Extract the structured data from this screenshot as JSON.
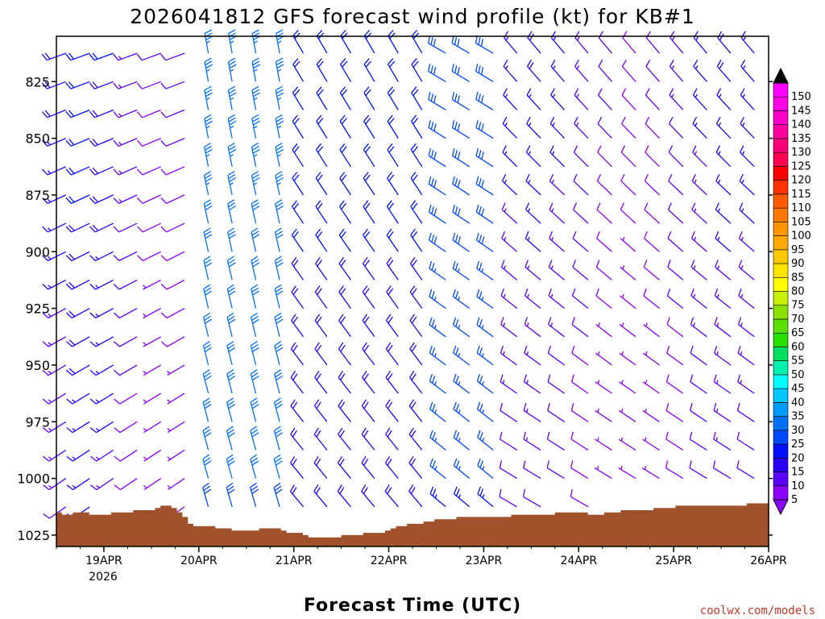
{
  "chart_data": {
    "type": "wind-barb-profile",
    "title": "2026041812 GFS forecast wind profile (kt) for KB#1",
    "xlabel": "Forecast Time (UTC)",
    "x_ticks": [
      "19APR",
      "20APR",
      "21APR",
      "22APR",
      "23APR",
      "24APR",
      "25APR",
      "26APR"
    ],
    "x_first_year": "2026",
    "x_range_days": [
      18.5,
      26.0
    ],
    "y_ticks": [
      825,
      850,
      875,
      900,
      925,
      950,
      975,
      1000,
      1025
    ],
    "y_range_hpa": [
      805,
      1030
    ],
    "barb_levels": [
      812.5,
      825,
      837.5,
      850,
      862.5,
      875,
      887.5,
      900,
      912.5,
      925,
      937.5,
      950,
      962.5,
      975,
      987.5,
      1000,
      1012.5,
      1025
    ],
    "barb_time_step_hours": 6,
    "colorbar": {
      "units": "kt",
      "labels": [
        5,
        10,
        15,
        20,
        25,
        30,
        35,
        40,
        45,
        50,
        55,
        60,
        65,
        70,
        75,
        80,
        85,
        90,
        95,
        100,
        105,
        110,
        115,
        120,
        125,
        130,
        135,
        140,
        145,
        150
      ],
      "colors": [
        "#8c00ff",
        "#5a00ff",
        "#2800ff",
        "#0010ff",
        "#0048ff",
        "#0070ff",
        "#009cff",
        "#00c8ff",
        "#00ffff",
        "#00f0b0",
        "#00e060",
        "#28e000",
        "#5ae000",
        "#8ce000",
        "#c8f000",
        "#ffff00",
        "#ffe600",
        "#ffc800",
        "#ffaa00",
        "#ff9600",
        "#ff7800",
        "#ff5a00",
        "#ff3200",
        "#ff0000",
        "#ff0050",
        "#ff0078",
        "#ff00a0",
        "#ff00c8",
        "#ff00e6",
        "#ff00ff"
      ]
    },
    "terrain_pressure_hpa": [
      1015,
      1016,
      1016,
      1015,
      1015,
      1015,
      1016,
      1016,
      1016,
      1016,
      1015,
      1015,
      1015,
      1015,
      1014,
      1014,
      1014,
      1014,
      1013,
      1012,
      1012,
      1013,
      1015,
      1017,
      1020,
      1021,
      1021,
      1021,
      1021,
      1022,
      1022,
      1022,
      1023,
      1023,
      1023,
      1023,
      1023,
      1022,
      1022,
      1022,
      1022,
      1023,
      1024,
      1024,
      1024,
      1025,
      1026,
      1026,
      1026,
      1026,
      1026,
      1026,
      1025,
      1025,
      1025,
      1025,
      1024,
      1024,
      1024,
      1024,
      1023,
      1022,
      1021,
      1021,
      1020,
      1020,
      1020,
      1019,
      1019,
      1018,
      1018,
      1018,
      1018,
      1017,
      1017,
      1017,
      1017,
      1017,
      1017,
      1017,
      1017,
      1017,
      1017,
      1016,
      1016,
      1016,
      1016,
      1016,
      1016,
      1016,
      1016,
      1015,
      1015,
      1015,
      1015,
      1015,
      1015,
      1016,
      1016,
      1016,
      1015,
      1015,
      1015,
      1014,
      1014,
      1014,
      1014,
      1014,
      1014,
      1013,
      1013,
      1013,
      1013,
      1012,
      1012,
      1012,
      1012,
      1012,
      1012,
      1012,
      1012,
      1012,
      1012,
      1012,
      1012,
      1012,
      1011,
      1011,
      1011,
      1011
    ],
    "terrain_color": "#a0522d",
    "credit": "coolwx.com/models"
  }
}
